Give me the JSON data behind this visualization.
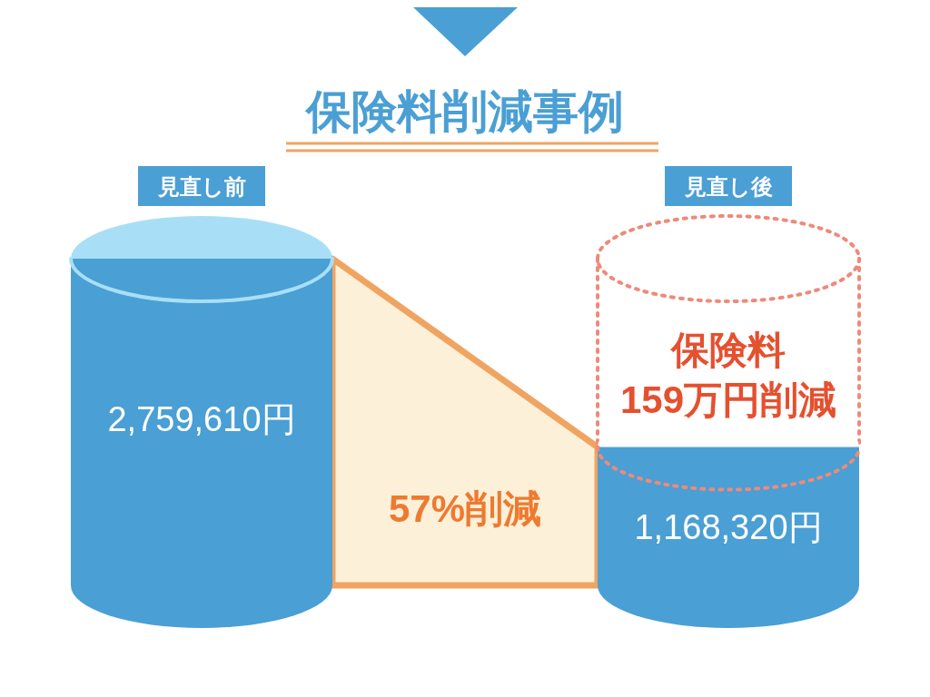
{
  "chart_data": {
    "type": "bar",
    "title": "保険料削減事例",
    "categories": [
      "見直し前",
      "見直し後"
    ],
    "values": [
      2759610,
      1168320
    ],
    "color": "#4a9fd4",
    "value_labels": [
      "2,759,610円",
      "1,168,320円"
    ],
    "annotations": [
      "57%削減",
      "保険料",
      "159万円削減"
    ]
  }
}
